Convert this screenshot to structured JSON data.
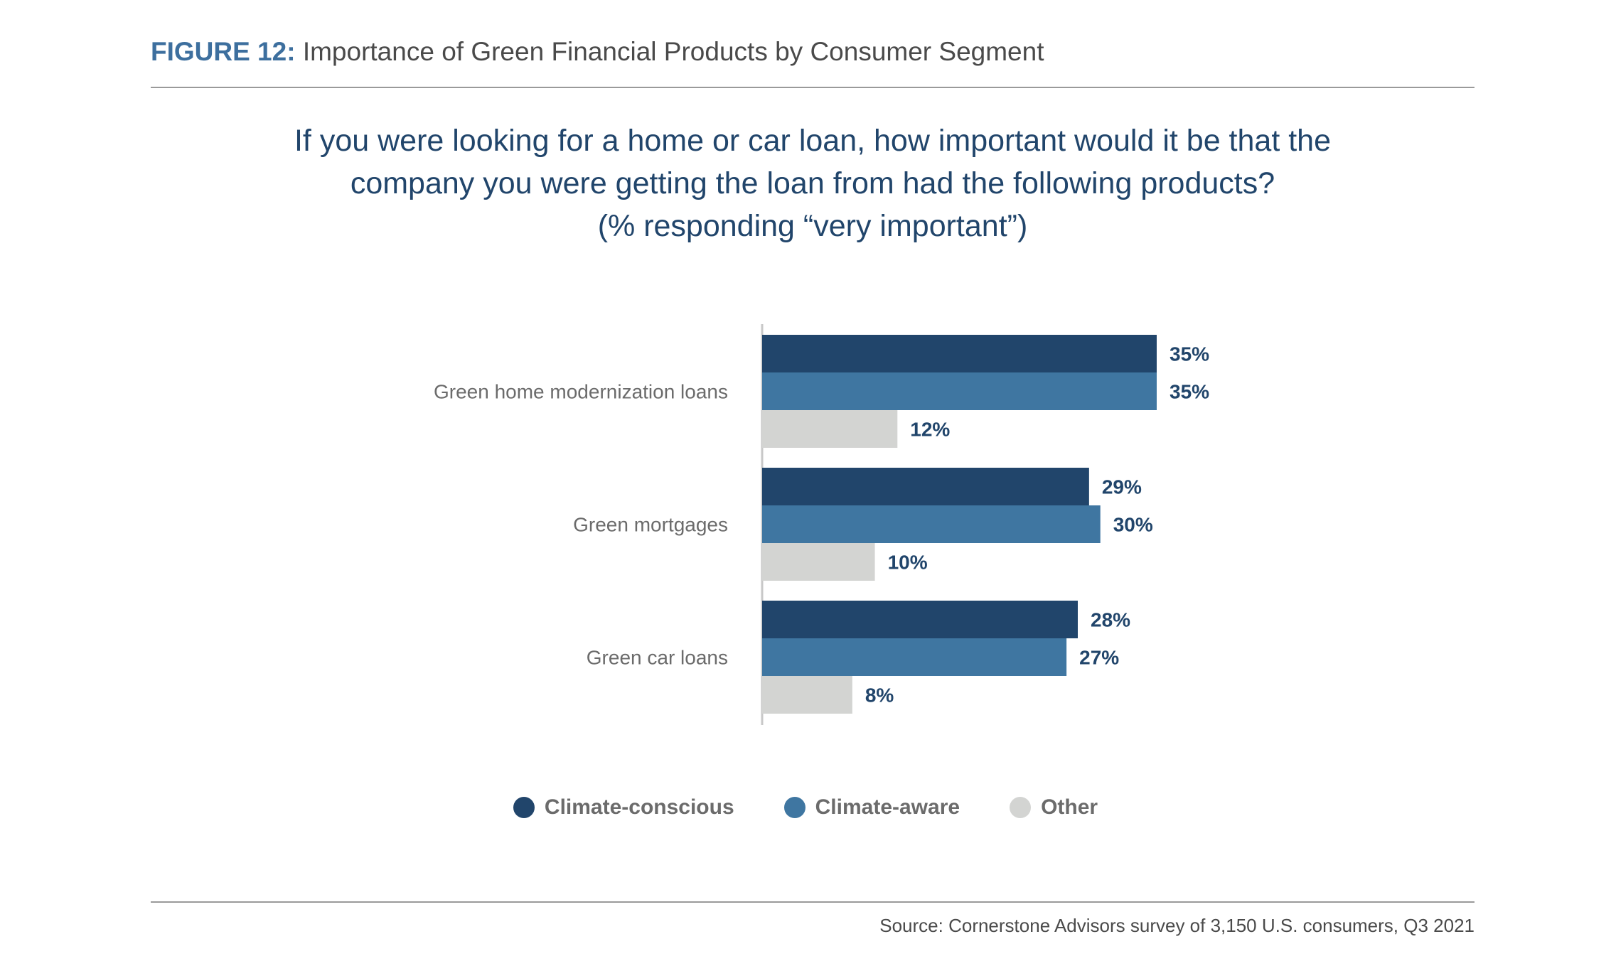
{
  "header": {
    "figure_label": "FIGURE 12:",
    "figure_title": "Importance of Green Financial Products by Consumer Segment"
  },
  "question": {
    "line1": "If you were looking for a home or car loan, how important would it be that the",
    "line2": "company you were getting the loan from had the following products?",
    "line3": "(% responding “very important”)"
  },
  "source": "Source: Cornerstone Advisors survey of 3,150 U.S. consumers, Q3 2021",
  "colors": {
    "climate_conscious": "#21456b",
    "climate_aware": "#3f76a1",
    "other": "#d3d4d2",
    "label_text": "#21456b",
    "category_text": "#6b6b6b"
  },
  "chart_data": {
    "type": "bar",
    "orientation": "horizontal",
    "title": "Importance of Green Financial Products by Consumer Segment",
    "categories": [
      "Green home modernization loans",
      "Green mortgages",
      "Green car loans"
    ],
    "series": [
      {
        "name": "Climate-conscious",
        "values": [
          35,
          29,
          28
        ]
      },
      {
        "name": "Climate-aware",
        "values": [
          35,
          30,
          27
        ]
      },
      {
        "name": "Other",
        "values": [
          12,
          10,
          8
        ]
      }
    ],
    "value_labels": [
      [
        "35%",
        "29%",
        "28%"
      ],
      [
        "35%",
        "30%",
        "27%"
      ],
      [
        "12%",
        "10%",
        "8%"
      ]
    ],
    "xlim": [
      0,
      35
    ],
    "grid": false,
    "legend_position": "bottom-center"
  }
}
